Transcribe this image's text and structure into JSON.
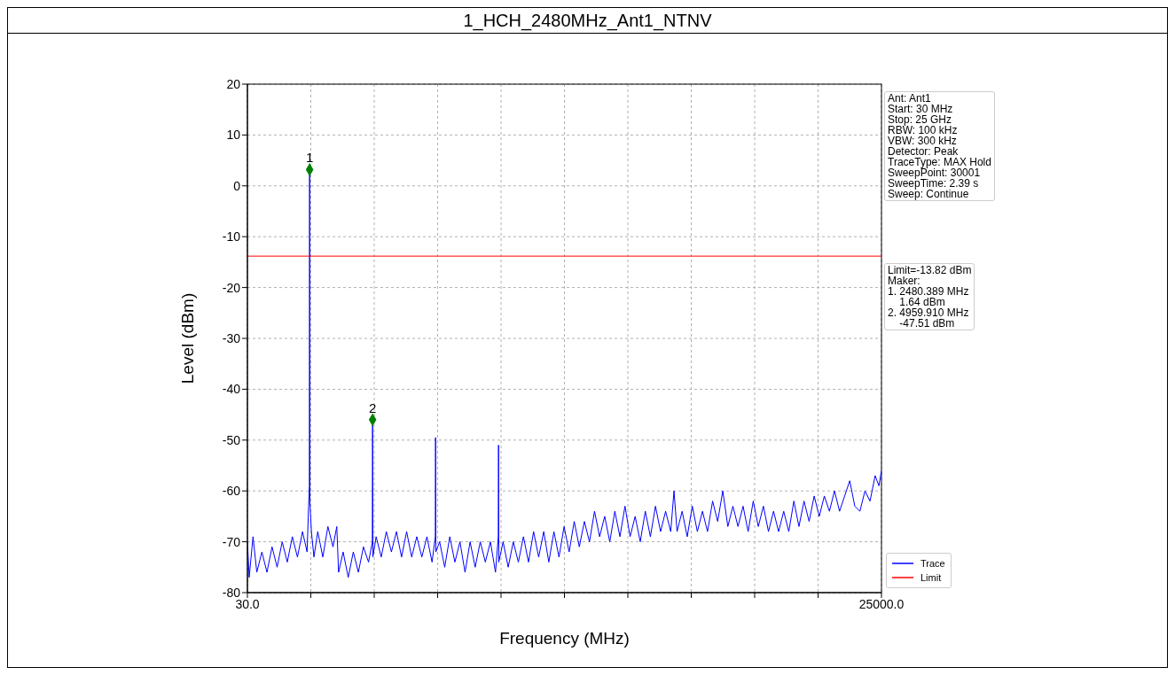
{
  "chart_data": {
    "type": "line",
    "title": "1_HCH_2480MHz_Ant1_NTNV",
    "xlabel": "Frequency (MHz)",
    "ylabel": "Level (dBm)",
    "xlim": [
      30,
      25000
    ],
    "xticks": [
      {
        "value": 30,
        "label": "30.0"
      },
      {
        "value": 2527,
        "label": null
      },
      {
        "value": 5024,
        "label": null
      },
      {
        "value": 7521,
        "label": null
      },
      {
        "value": 10018,
        "label": null
      },
      {
        "value": 12515,
        "label": null
      },
      {
        "value": 15012,
        "label": null
      },
      {
        "value": 17509,
        "label": null
      },
      {
        "value": 20006,
        "label": null
      },
      {
        "value": 22503,
        "label": null
      },
      {
        "value": 25000,
        "label": "25000.0"
      }
    ],
    "ylim": [
      -80,
      20
    ],
    "yticks": [
      -80,
      -70,
      -60,
      -50,
      -40,
      -30,
      -20,
      -10,
      0,
      10,
      20
    ],
    "grid": true,
    "legend": "bottom right",
    "marker": "none",
    "line_style": "solid",
    "series": [
      {
        "name": "Trace",
        "color": "#0000ff",
        "x": [
          30,
          100,
          250,
          400,
          600,
          800,
          1000,
          1200,
          1400,
          1600,
          1800,
          2000,
          2200,
          2380,
          2440,
          2470,
          2480,
          2490,
          2550,
          2650,
          2800,
          3000,
          3200,
          3400,
          3550,
          3620,
          3800,
          4000,
          4200,
          4400,
          4600,
          4800,
          4950,
          4960,
          4970,
          5100,
          5300,
          5500,
          5700,
          5900,
          6100,
          6300,
          6500,
          6700,
          6900,
          7100,
          7300,
          7430,
          7440,
          7450,
          7600,
          7800,
          8000,
          8200,
          8400,
          8600,
          8800,
          9000,
          9200,
          9400,
          9600,
          9800,
          9910,
          9920,
          9930,
          10100,
          10300,
          10500,
          10700,
          10900,
          11100,
          11300,
          11500,
          11700,
          11900,
          12100,
          12300,
          12500,
          12700,
          12900,
          13100,
          13300,
          13500,
          13700,
          13900,
          14100,
          14300,
          14500,
          14700,
          14900,
          15100,
          15300,
          15500,
          15700,
          15900,
          16100,
          16300,
          16500,
          16700,
          16830,
          16950,
          17150,
          17350,
          17550,
          17750,
          17950,
          18150,
          18350,
          18550,
          18750,
          18950,
          19150,
          19350,
          19550,
          19750,
          19950,
          20150,
          20350,
          20550,
          20750,
          20950,
          21150,
          21350,
          21550,
          21750,
          21950,
          22150,
          22350,
          22550,
          22750,
          22950,
          23150,
          23350,
          23550,
          23750,
          23950,
          24150,
          24350,
          24550,
          24750,
          24900,
          25000
        ],
        "values": [
          -70,
          -77,
          -69,
          -76,
          -72,
          -76,
          -71,
          -75,
          -70,
          -74,
          -69,
          -73,
          -68,
          -72,
          -63,
          -59,
          3.2,
          -62,
          -68,
          -73,
          -68,
          -73,
          -67,
          -71,
          -67,
          -76,
          -72,
          -77,
          -72,
          -76,
          -71,
          -74,
          -70,
          -46,
          -73,
          -69,
          -73,
          -68,
          -72,
          -68,
          -73,
          -68,
          -73,
          -69,
          -73,
          -69,
          -74,
          -69,
          -49.5,
          -72,
          -70,
          -75,
          -69,
          -74,
          -70,
          -76,
          -70,
          -75,
          -70,
          -74,
          -70,
          -76,
          -69,
          -51,
          -74,
          -70,
          -75,
          -70,
          -74,
          -69,
          -74,
          -68,
          -73,
          -68,
          -74,
          -68,
          -73,
          -67,
          -72,
          -66,
          -71,
          -66,
          -70,
          -64,
          -69,
          -65,
          -70,
          -64,
          -69,
          -63,
          -69,
          -65,
          -70,
          -64,
          -69,
          -63,
          -68,
          -64,
          -68,
          -60,
          -68,
          -64,
          -69,
          -63,
          -68,
          -64,
          -68,
          -62,
          -66,
          -60,
          -67,
          -63,
          -67,
          -63,
          -68,
          -62,
          -67,
          -63,
          -68,
          -64,
          -68,
          -64,
          -68,
          -62,
          -67,
          -62,
          -66,
          -61,
          -65,
          -61,
          -64,
          -60,
          -64,
          -61,
          -58,
          -63,
          -64,
          -60,
          -62,
          -57,
          -59,
          -56
        ]
      },
      {
        "name": "Limit",
        "color": "#ff0000",
        "x": [
          30,
          25000
        ],
        "values": [
          -13.82,
          -13.82
        ]
      },
      {
        "type": "scatter",
        "color": "#008000",
        "marker": "diamond",
        "x": [
          2480,
          4960
        ],
        "values": [
          3.2,
          -46
        ]
      }
    ],
    "annotations": [
      {
        "text": "1",
        "x": 2480,
        "y": 3.2
      },
      {
        "text": "2",
        "x": 4960,
        "y": -46
      },
      "Ant: Ant1\nStart: 30 MHz\nStop: 25 GHz\nRBW: 100 kHz\nVBW: 300 kHz\nDetector: Peak\nTraceType: MAX Hold\nSweepPoint: 30001\nSweepTime: 2.39 s\nSweep: Continue",
      "Limit=-13.82 dBm\nMaker:\n1. 2480.389 MHz\n    1.64 dBm\n2. 4959.910 MHz\n    -47.51 dBm"
    ]
  }
}
